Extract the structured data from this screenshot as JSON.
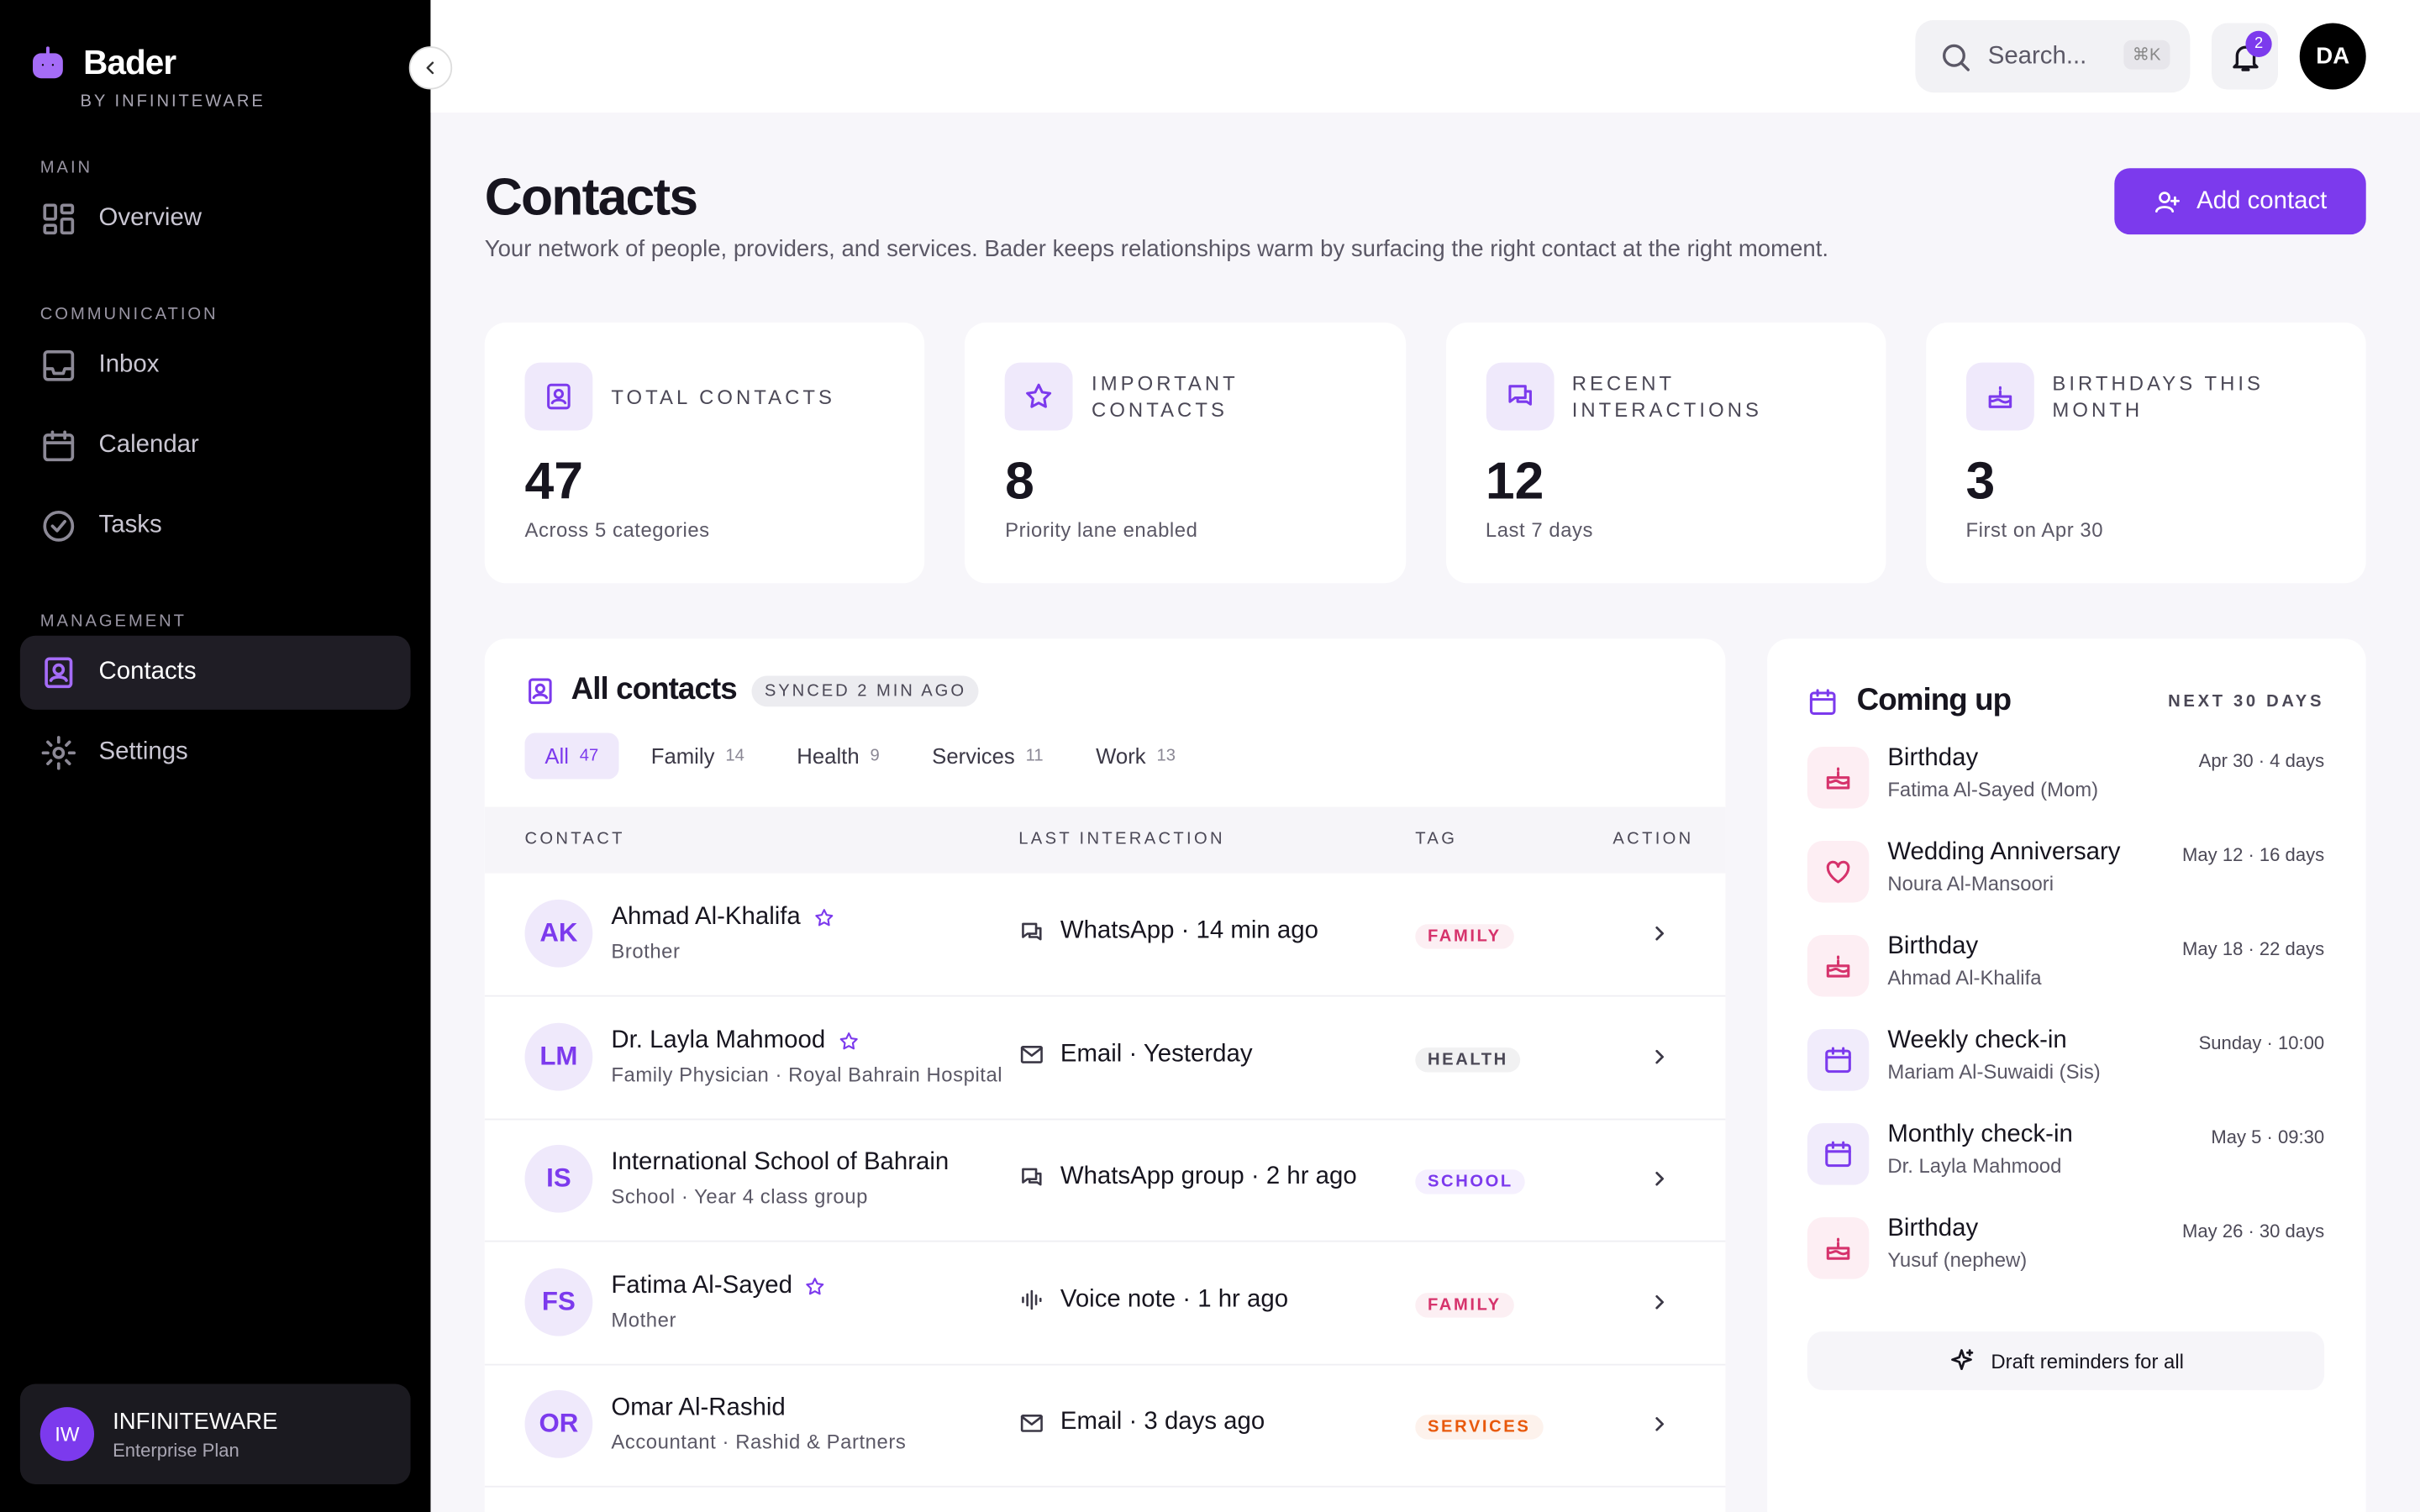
{
  "sidebar": {
    "brand": "Bader",
    "tagline": "BY INFINITEWARE",
    "sections": [
      {
        "label": "MAIN",
        "items": [
          {
            "label": "Overview",
            "icon": "grid"
          }
        ]
      },
      {
        "label": "COMMUNICATION",
        "items": [
          {
            "label": "Inbox",
            "icon": "inbox"
          },
          {
            "label": "Calendar",
            "icon": "calendar"
          },
          {
            "label": "Tasks",
            "icon": "check"
          }
        ]
      },
      {
        "label": "MANAGEMENT",
        "items": [
          {
            "label": "Contacts",
            "icon": "contacts",
            "active": true
          },
          {
            "label": "Settings",
            "icon": "gear"
          }
        ]
      }
    ],
    "account": {
      "initials": "IW",
      "name": "INFINITEWARE",
      "plan": "Enterprise Plan"
    }
  },
  "topbar": {
    "search": "Search...",
    "shortcut": "⌘K",
    "notifications": "2",
    "avatar": "DA"
  },
  "header": {
    "title": "Contacts",
    "subtitle": "Your network of people, providers, and services. Bader keeps relationships warm by surfacing the right contact at the right moment.",
    "button": "Add contact"
  },
  "stats": [
    {
      "label": "TOTAL CONTACTS",
      "value": 47,
      "note": "Across 5 categories",
      "icon": "contacts"
    },
    {
      "label": "IMPORTANT CONTACTS",
      "value": 8,
      "note": "Priority lane enabled",
      "icon": "star"
    },
    {
      "label": "RECENT INTERACTIONS",
      "value": 12,
      "note": "Last 7 days",
      "icon": "chat"
    },
    {
      "label": "BIRTHDAYS THIS MONTH",
      "value": 3,
      "note": "First on Apr 30",
      "icon": "cake"
    }
  ],
  "contacts": {
    "title": "All contacts",
    "badge": "SYNCED 2 MIN AGO",
    "tabs": [
      {
        "label": "All",
        "count": 47,
        "active": true
      },
      {
        "label": "Family",
        "count": 14
      },
      {
        "label": "Health",
        "count": 9
      },
      {
        "label": "Services",
        "count": 11
      },
      {
        "label": "Work",
        "count": 13
      }
    ],
    "columns": [
      "CONTACT",
      "LAST INTERACTION",
      "TAG",
      "ACTION"
    ],
    "rows": [
      {
        "initials": "AK",
        "name": "Ahmad Al-Khalifa",
        "starred": true,
        "detail": "Brother",
        "channel": "chat",
        "interaction": "WhatsApp · 14 min ago",
        "tag": "FAMILY",
        "tag_color": "#d6336c"
      },
      {
        "initials": "LM",
        "name": "Dr. Layla Mahmood",
        "starred": true,
        "detail": "Family Physician · Royal Bahrain Hospital",
        "channel": "mail",
        "interaction": "Email · Yesterday",
        "tag": "HEALTH",
        "tag_color": "#4b4856"
      },
      {
        "initials": "IS",
        "name": "International School of Bahrain",
        "starred": false,
        "detail": "School · Year 4 class group",
        "channel": "chat",
        "interaction": "WhatsApp group · 2 hr ago",
        "tag": "SCHOOL",
        "tag_color": "#7c3aed"
      },
      {
        "initials": "FS",
        "name": "Fatima Al-Sayed",
        "starred": true,
        "detail": "Mother",
        "channel": "voice",
        "interaction": "Voice note · 1 hr ago",
        "tag": "FAMILY",
        "tag_color": "#d6336c"
      },
      {
        "initials": "OR",
        "name": "Omar Al-Rashid",
        "starred": false,
        "detail": "Accountant · Rashid & Partners",
        "channel": "mail",
        "interaction": "Email · 3 days ago",
        "tag": "SERVICES",
        "tag_color": "#e8590c"
      }
    ]
  },
  "coming_up": {
    "title": "Coming up",
    "range": "NEXT 30 DAYS",
    "events": [
      {
        "title": "Birthday",
        "person": "Fatima Al-Sayed (Mom)",
        "when": "Apr 30 · 4 days",
        "icon": "cake"
      },
      {
        "title": "Wedding Anniversary",
        "person": "Noura Al-Mansoori",
        "when": "May 12 · 16 days",
        "icon": "heart"
      },
      {
        "title": "Birthday",
        "person": "Ahmad Al-Khalifa",
        "when": "May 18 · 22 days",
        "icon": "cake"
      },
      {
        "title": "Weekly check-in",
        "person": "Mariam Al-Suwaidi (Sis)",
        "when": "Sunday · 10:00",
        "icon": "calendar"
      },
      {
        "title": "Monthly check-in",
        "person": "Dr. Layla Mahmood",
        "when": "May 5 · 09:30",
        "icon": "calendar"
      },
      {
        "title": "Birthday",
        "person": "Yusuf (nephew)",
        "when": "May 26 · 30 days",
        "icon": "cake"
      }
    ],
    "button": "Draft reminders for all"
  }
}
